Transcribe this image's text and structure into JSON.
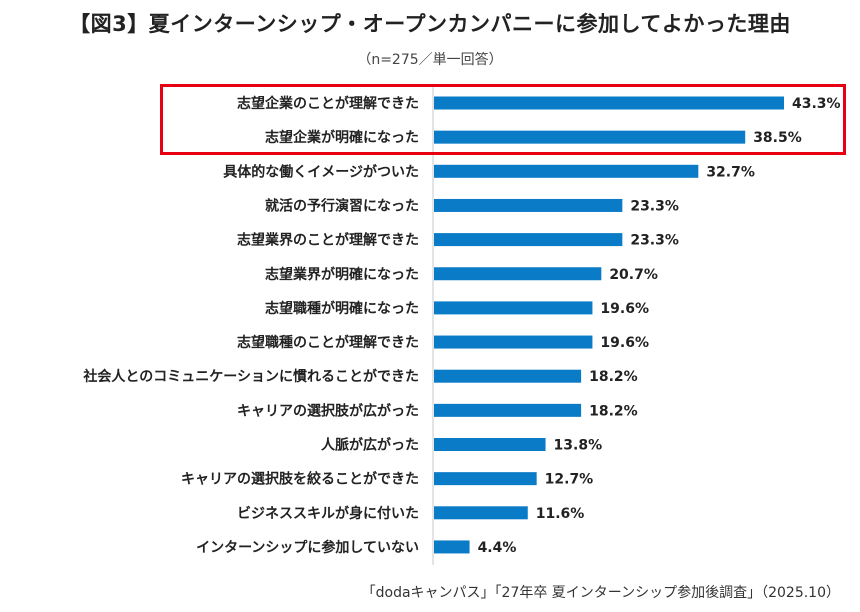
{
  "title": "【図3】夏インターンシップ・オープンカンパニーに参加してよかった理由",
  "subtitle": "（n=275／単一回答）",
  "source": "「dodaキャンパス」「27年卒 夏インターンシップ参加後調査」（2025.10）",
  "colors": {
    "bar": "#0a7bc6",
    "highlight": "#e60012",
    "axis": "#c8c8c8"
  },
  "chart_data": {
    "type": "bar",
    "orientation": "horizontal",
    "unit": "%",
    "xlim": [
      0,
      50
    ],
    "highlighted": [
      0,
      1
    ],
    "categories": [
      "志望企業のことが理解できた",
      "志望企業が明確になった",
      "具体的な働くイメージがついた",
      "就活の予行演習になった",
      "志望業界のことが理解できた",
      "志望業界が明確になった",
      "志望職種が明確になった",
      "志望職種のことが理解できた",
      "社会人とのコミュニケーションに慣れることができた",
      "キャリアの選択肢が広がった",
      "人脈が広がった",
      "キャリアの選択肢を絞ることができた",
      "ビジネススキルが身に付いた",
      "インターンシップに参加していない"
    ],
    "values": [
      43.3,
      38.5,
      32.7,
      23.3,
      23.3,
      20.7,
      19.6,
      19.6,
      18.2,
      18.2,
      13.8,
      12.7,
      11.6,
      4.4
    ],
    "value_labels": [
      "43.3%",
      "38.5%",
      "32.7%",
      "23.3%",
      "23.3%",
      "20.7%",
      "19.6%",
      "19.6%",
      "18.2%",
      "18.2%",
      "13.8%",
      "12.7%",
      "11.6%",
      "4.4%"
    ]
  }
}
